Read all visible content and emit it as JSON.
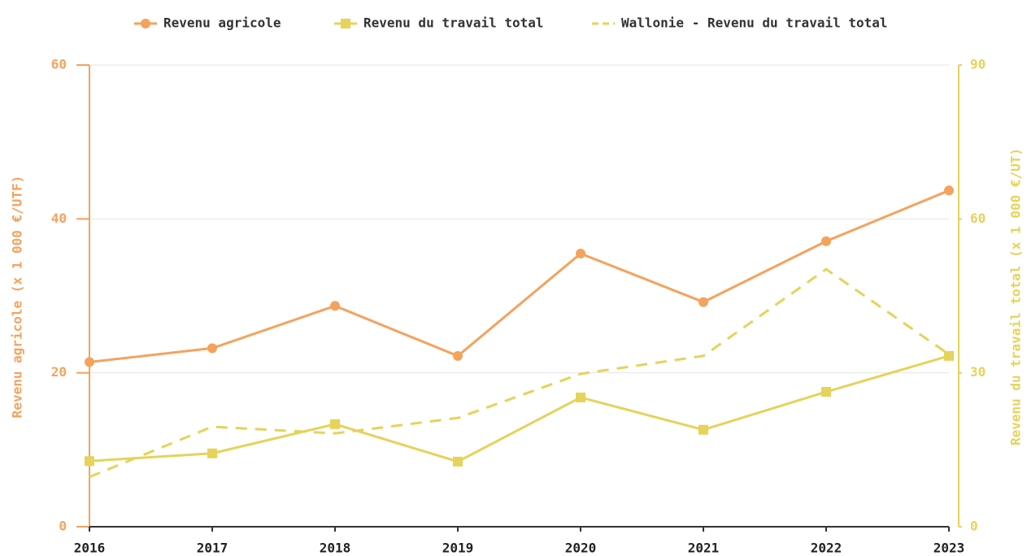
{
  "chart_data": {
    "type": "line",
    "categories": [
      "2016",
      "2017",
      "2018",
      "2019",
      "2020",
      "2021",
      "2022",
      "2023"
    ],
    "series": [
      {
        "name": "Revenu agricole",
        "color": "#f5a25d",
        "marker": "circle",
        "axis": "y",
        "values": [
          21.4,
          23.2,
          28.7,
          22.2,
          35.5,
          29.2,
          37.1,
          43.7
        ]
      },
      {
        "name": "Revenu du travail total",
        "color": "#e5d35a",
        "marker": "square",
        "axis": "y2",
        "values": [
          12.8,
          14.3,
          20.0,
          12.7,
          25.2,
          18.9,
          26.3,
          33.3
        ]
      },
      {
        "name": "Wallonie - Revenu du travail total",
        "color": "#e5d35a",
        "dashed": true,
        "axis": "y2",
        "values": [
          9.7,
          19.5,
          18.2,
          21.2,
          29.8,
          33.3,
          50.2,
          33.6
        ]
      }
    ],
    "ylabel": "Revenu agricole (x 1 000 €/UTF)",
    "y2label": "Revenu du travail total (x 1 000 €/UT)",
    "ylim": [
      0,
      60
    ],
    "yticks": [
      0,
      20,
      40,
      60
    ],
    "y2lim": [
      0,
      90
    ],
    "y2ticks": [
      0,
      30,
      60,
      90
    ],
    "grid": true,
    "legend": "top"
  }
}
